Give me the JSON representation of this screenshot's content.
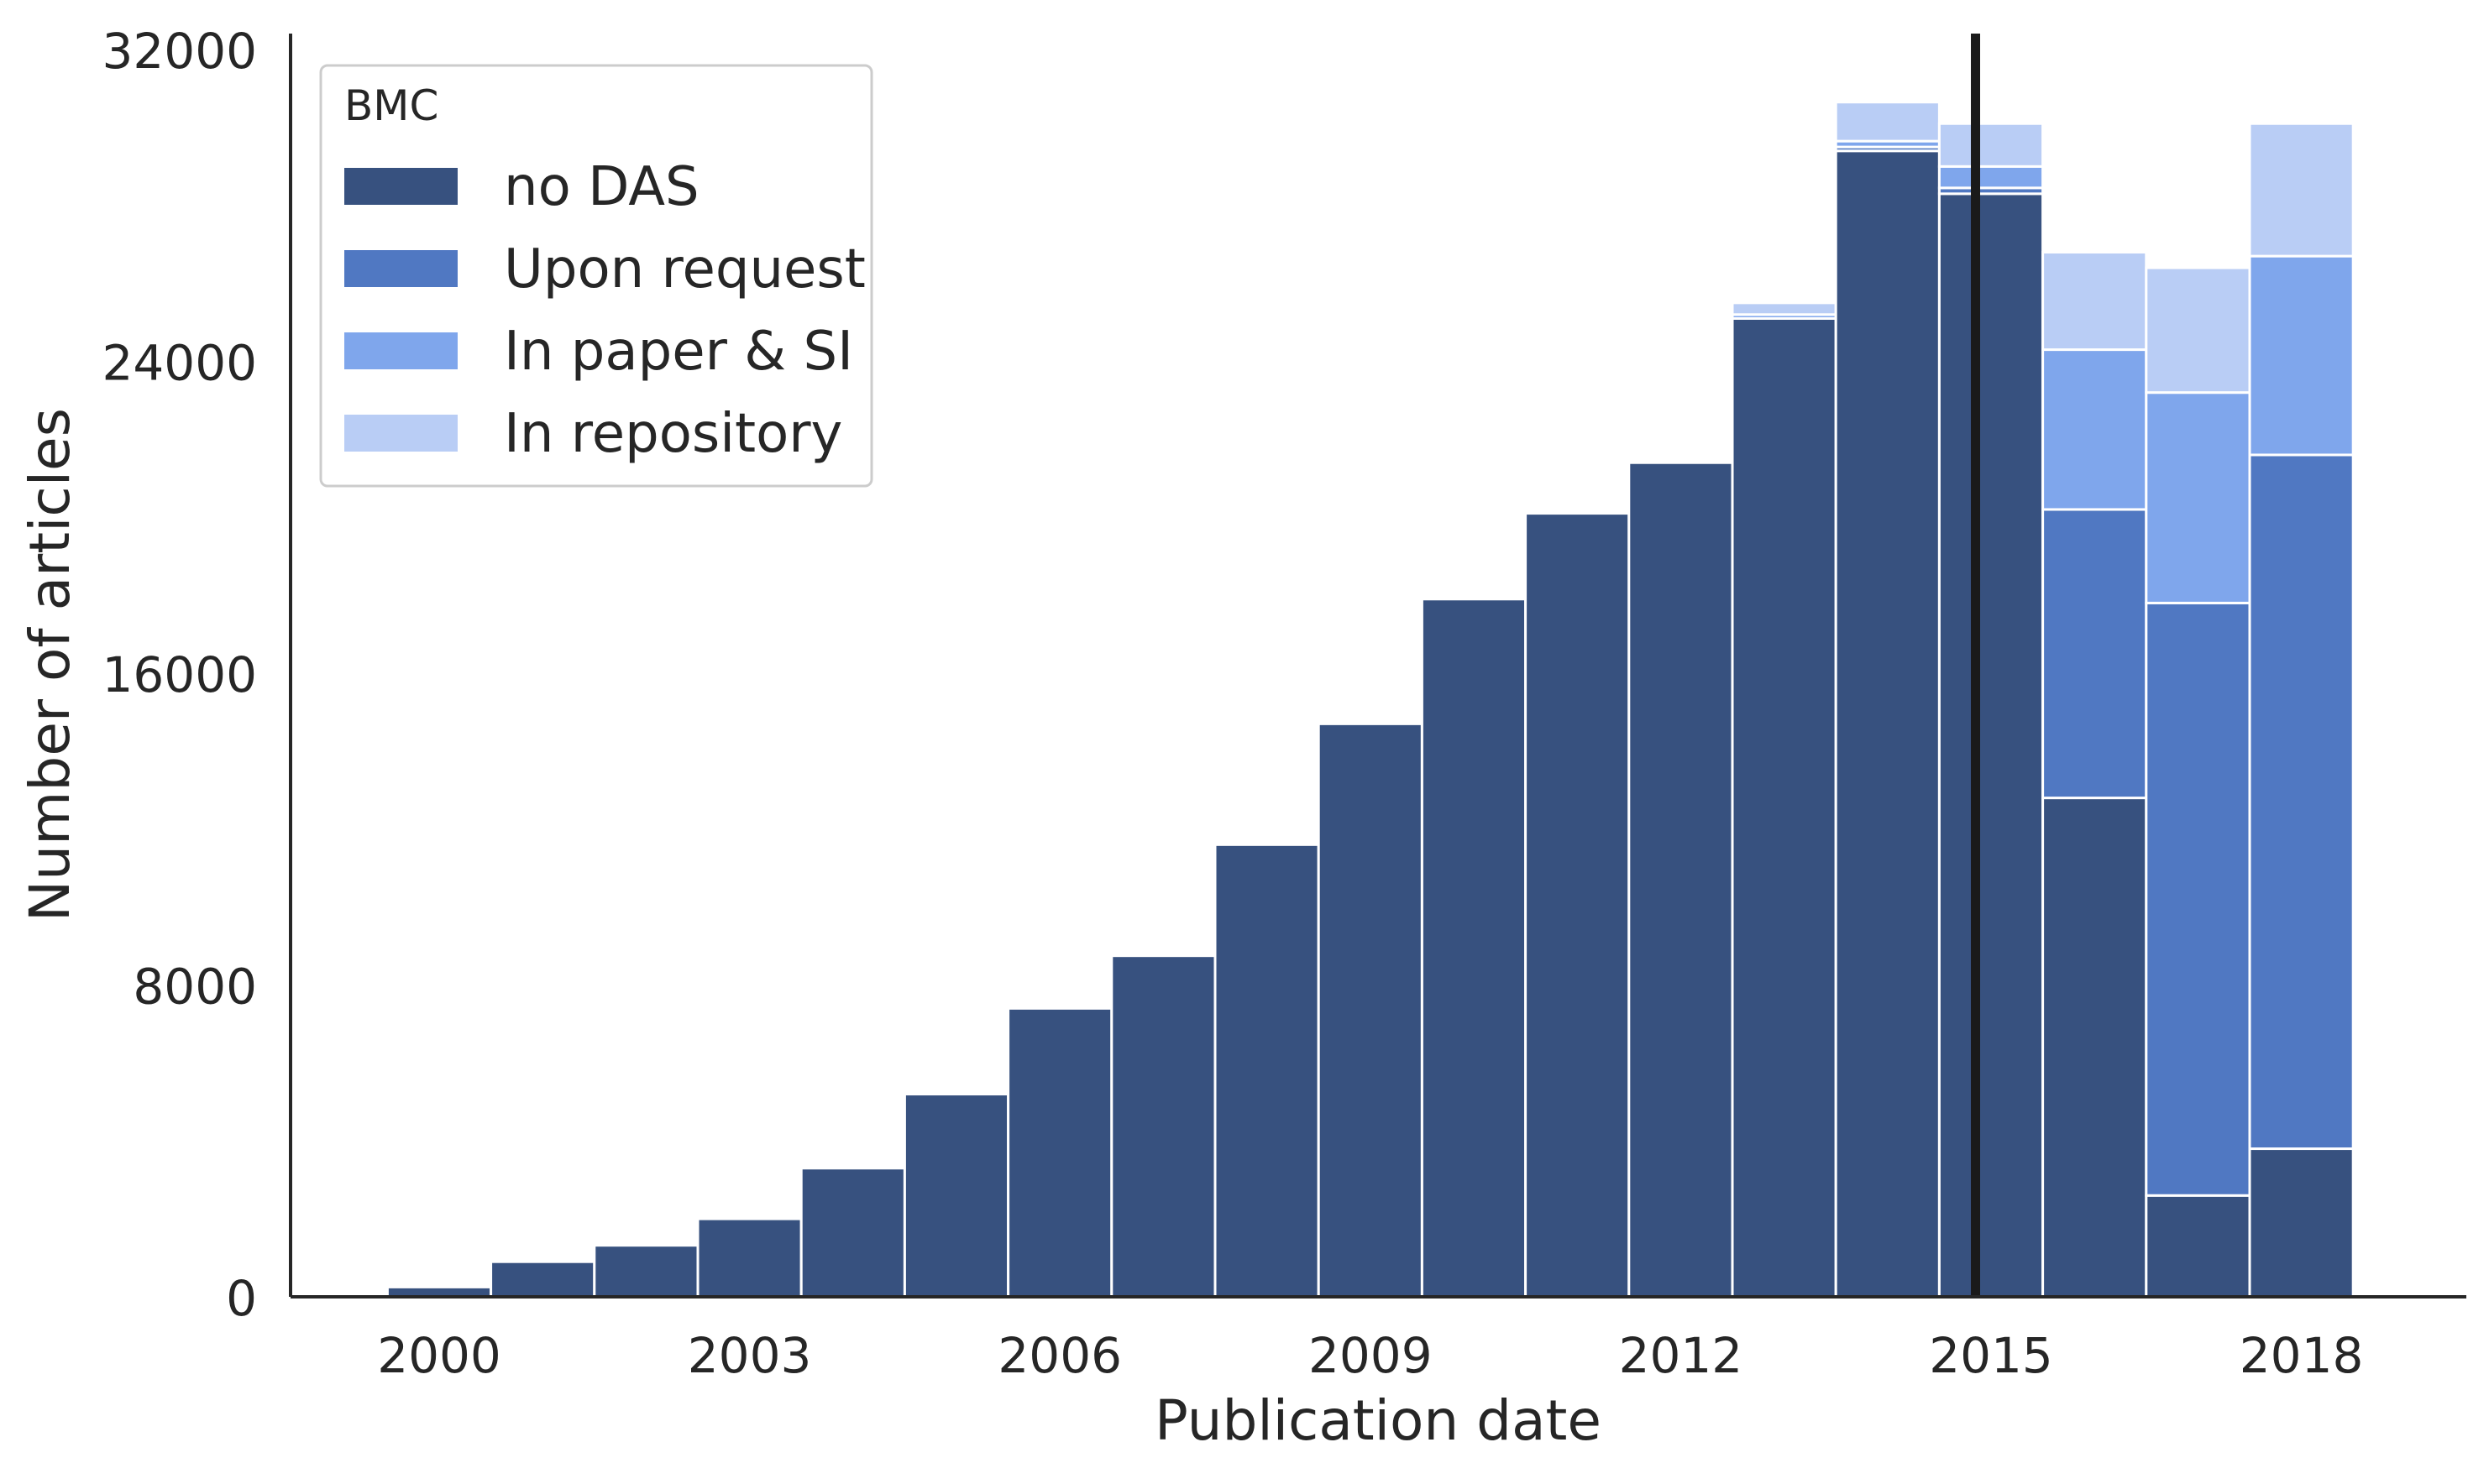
{
  "chart_data": {
    "type": "bar",
    "stacked": true,
    "xlabel": "Publication date",
    "ylabel": "Number of articles",
    "ylim": [
      0,
      32000
    ],
    "yticks": [
      0,
      8000,
      16000,
      24000,
      32000
    ],
    "xticks": [
      "2000",
      "2003",
      "2006",
      "2009",
      "2012",
      "2015",
      "2018"
    ],
    "categories": [
      "2000",
      "2001",
      "2002",
      "2003",
      "2004",
      "2005",
      "2006",
      "2007",
      "2008",
      "2009",
      "2010",
      "2011",
      "2012",
      "2013",
      "2014",
      "2015",
      "2016",
      "2017",
      "2018"
    ],
    "series": [
      {
        "name": "no DAS",
        "color": "#37517f",
        "values": [
          250,
          900,
          1320,
          2000,
          3300,
          5200,
          7400,
          8750,
          11600,
          14700,
          17900,
          20100,
          21400,
          25100,
          29400,
          28300,
          12800,
          2600,
          3800
        ]
      },
      {
        "name": "Upon request",
        "color": "#5078c2",
        "values": [
          0,
          0,
          0,
          0,
          0,
          0,
          0,
          0,
          0,
          0,
          0,
          0,
          0,
          0,
          100,
          150,
          7400,
          15200,
          17800
        ]
      },
      {
        "name": "In paper & SI",
        "color": "#7fa6ec",
        "values": [
          0,
          0,
          0,
          0,
          0,
          0,
          0,
          0,
          0,
          0,
          0,
          0,
          0,
          100,
          150,
          550,
          4100,
          5400,
          5100
        ]
      },
      {
        "name": "In repository",
        "color": "#b9cdf5",
        "values": [
          0,
          0,
          0,
          0,
          0,
          0,
          0,
          0,
          0,
          0,
          0,
          0,
          0,
          300,
          1000,
          1100,
          2500,
          3200,
          3400
        ]
      }
    ],
    "vline": {
      "x": 2014.85,
      "color": "#1a1a1a"
    },
    "legend": {
      "title": "BMC",
      "position": "top-left"
    },
    "grid": false
  }
}
